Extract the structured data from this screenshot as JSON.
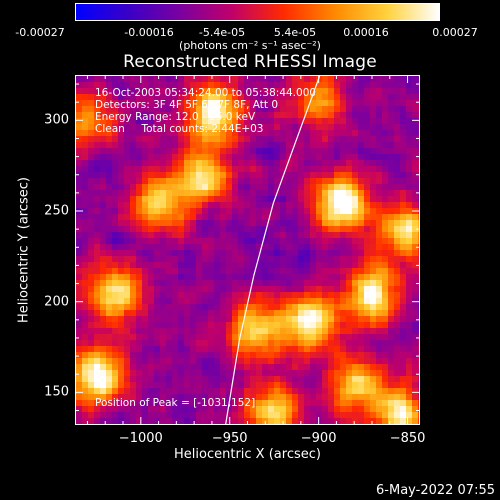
{
  "colorbar": {
    "ticks": [
      "-0.00027",
      "-0.00016",
      "-5.4e-05",
      "5.4e-05",
      "0.00016",
      "0.00027"
    ],
    "unit": "(photons cm⁻² s⁻¹ asec⁻²)",
    "colors": [
      "#0000ff",
      "#3a00c8",
      "#7a00a0",
      "#c0006a",
      "#ff2a00",
      "#ff8a00",
      "#ffd23c",
      "#ffffff"
    ]
  },
  "chart_data": {
    "type": "heatmap",
    "title": "Reconstructed RHESSI Image",
    "xlabel": "Heliocentric X (arcsec)",
    "ylabel": "Heliocentric Y (arcsec)",
    "xlim": [
      -1037,
      -843
    ],
    "ylim": [
      132,
      325
    ],
    "x_ticks": [
      -1000,
      -950,
      -900,
      -850
    ],
    "x_tick_labels": [
      "−1000",
      "−950",
      "−900",
      "−850"
    ],
    "y_ticks": [
      150,
      200,
      250,
      300
    ],
    "y_tick_labels": [
      "150",
      "200",
      "250",
      "300"
    ],
    "color_range": [
      -0.00027,
      0.00027
    ],
    "peak": {
      "x": -1031,
      "y": 152
    },
    "limb_curve": [
      {
        "x": -953,
        "y": 132
      },
      {
        "x": -945,
        "y": 180
      },
      {
        "x": -937,
        "y": 215
      },
      {
        "x": -926,
        "y": 255
      },
      {
        "x": -913,
        "y": 290
      },
      {
        "x": -900,
        "y": 325
      }
    ],
    "bright_sources": [
      {
        "x": -1025,
        "y": 160,
        "intensity": 1.0
      },
      {
        "x": -1015,
        "y": 205,
        "intensity": 0.8
      },
      {
        "x": -888,
        "y": 255,
        "intensity": 1.0
      },
      {
        "x": -960,
        "y": 305,
        "intensity": 0.95
      },
      {
        "x": -965,
        "y": 270,
        "intensity": 0.8
      },
      {
        "x": -990,
        "y": 255,
        "intensity": 0.75
      },
      {
        "x": -870,
        "y": 205,
        "intensity": 0.9
      },
      {
        "x": -905,
        "y": 190,
        "intensity": 0.85
      },
      {
        "x": -935,
        "y": 185,
        "intensity": 0.75
      },
      {
        "x": -880,
        "y": 155,
        "intensity": 0.7
      },
      {
        "x": -855,
        "y": 140,
        "intensity": 0.8
      },
      {
        "x": -925,
        "y": 140,
        "intensity": 0.8
      },
      {
        "x": -1030,
        "y": 300,
        "intensity": 0.55
      },
      {
        "x": -853,
        "y": 240,
        "intensity": 0.75
      },
      {
        "x": -900,
        "y": 310,
        "intensity": 0.6
      }
    ]
  },
  "info": {
    "line1": "16-Oct-2003 05:34:24.00 to 05:38:44.000",
    "line2": "Detectors: 3F 4F 5F 6F 7F 8F, Att 0",
    "line3": "Energy Range: 12.0 - 25.0 keV",
    "line4": "Clean     Total counts: 2.44E+03",
    "peak_label": "Position of Peak = [-1031,152]"
  },
  "footer": {
    "date": "6-May-2022 07:55"
  }
}
